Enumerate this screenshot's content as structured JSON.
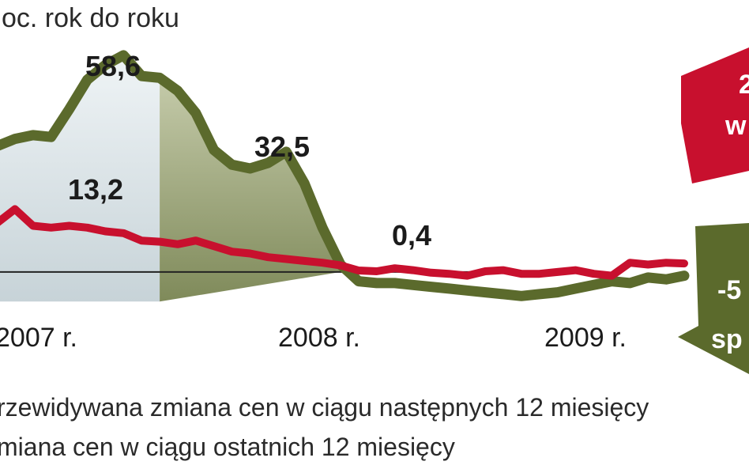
{
  "chart_data": {
    "type": "line",
    "unit_label": "oc. rok do roku",
    "x_labels": [
      "2007 r.",
      "2008 r.",
      "2009 r."
    ],
    "ylim": [
      -12,
      65
    ],
    "series": [
      {
        "name": "rzewidywana zmiana cen w ciągu następnych 12 miesięcy",
        "color": "#5b6a2c",
        "values": [
          34,
          36,
          37,
          36.5,
          44,
          52,
          56,
          58.6,
          53,
          52.5,
          49,
          43,
          33,
          29,
          28,
          29.5,
          32.5,
          24,
          12,
          2,
          -2.5,
          -3,
          -3,
          -3.5,
          -4,
          -4.5,
          -5,
          -5.5,
          -6,
          -6.5,
          -6,
          -5.5,
          -4.5,
          -3.5,
          -2.5,
          -3,
          -1.5,
          -2,
          -1
        ]
      },
      {
        "name": "miana cen w ciągu ostatnich 12 miesięcy",
        "color": "#c8102e",
        "values": [
          13.2,
          17,
          12.5,
          12,
          12.5,
          12,
          11,
          10.5,
          8.5,
          8.2,
          7.5,
          8.5,
          7,
          5.5,
          5,
          4,
          3.5,
          3,
          2.5,
          1.8,
          0.4,
          0.2,
          1,
          0.5,
          -0.2,
          -0.5,
          -1,
          0.2,
          0.5,
          -0.5,
          -0.5,
          0,
          0.5,
          -0.5,
          -1,
          2.5,
          2,
          2.5,
          2.3
        ]
      }
    ],
    "annotations": [
      "58,6",
      "32,5",
      "13,2",
      "0,4"
    ],
    "arrows": {
      "up": {
        "line1": "2",
        "line2": "w"
      },
      "down": {
        "line1": "-5",
        "line2": "sp"
      }
    },
    "colors": {
      "series1": "#5b6a2c",
      "series2": "#c8102e",
      "arrow_up": "#c8102e",
      "arrow_down": "#5b6a2c",
      "area_light": "#dbe4e8",
      "area_dark": "#9aa57c"
    }
  }
}
